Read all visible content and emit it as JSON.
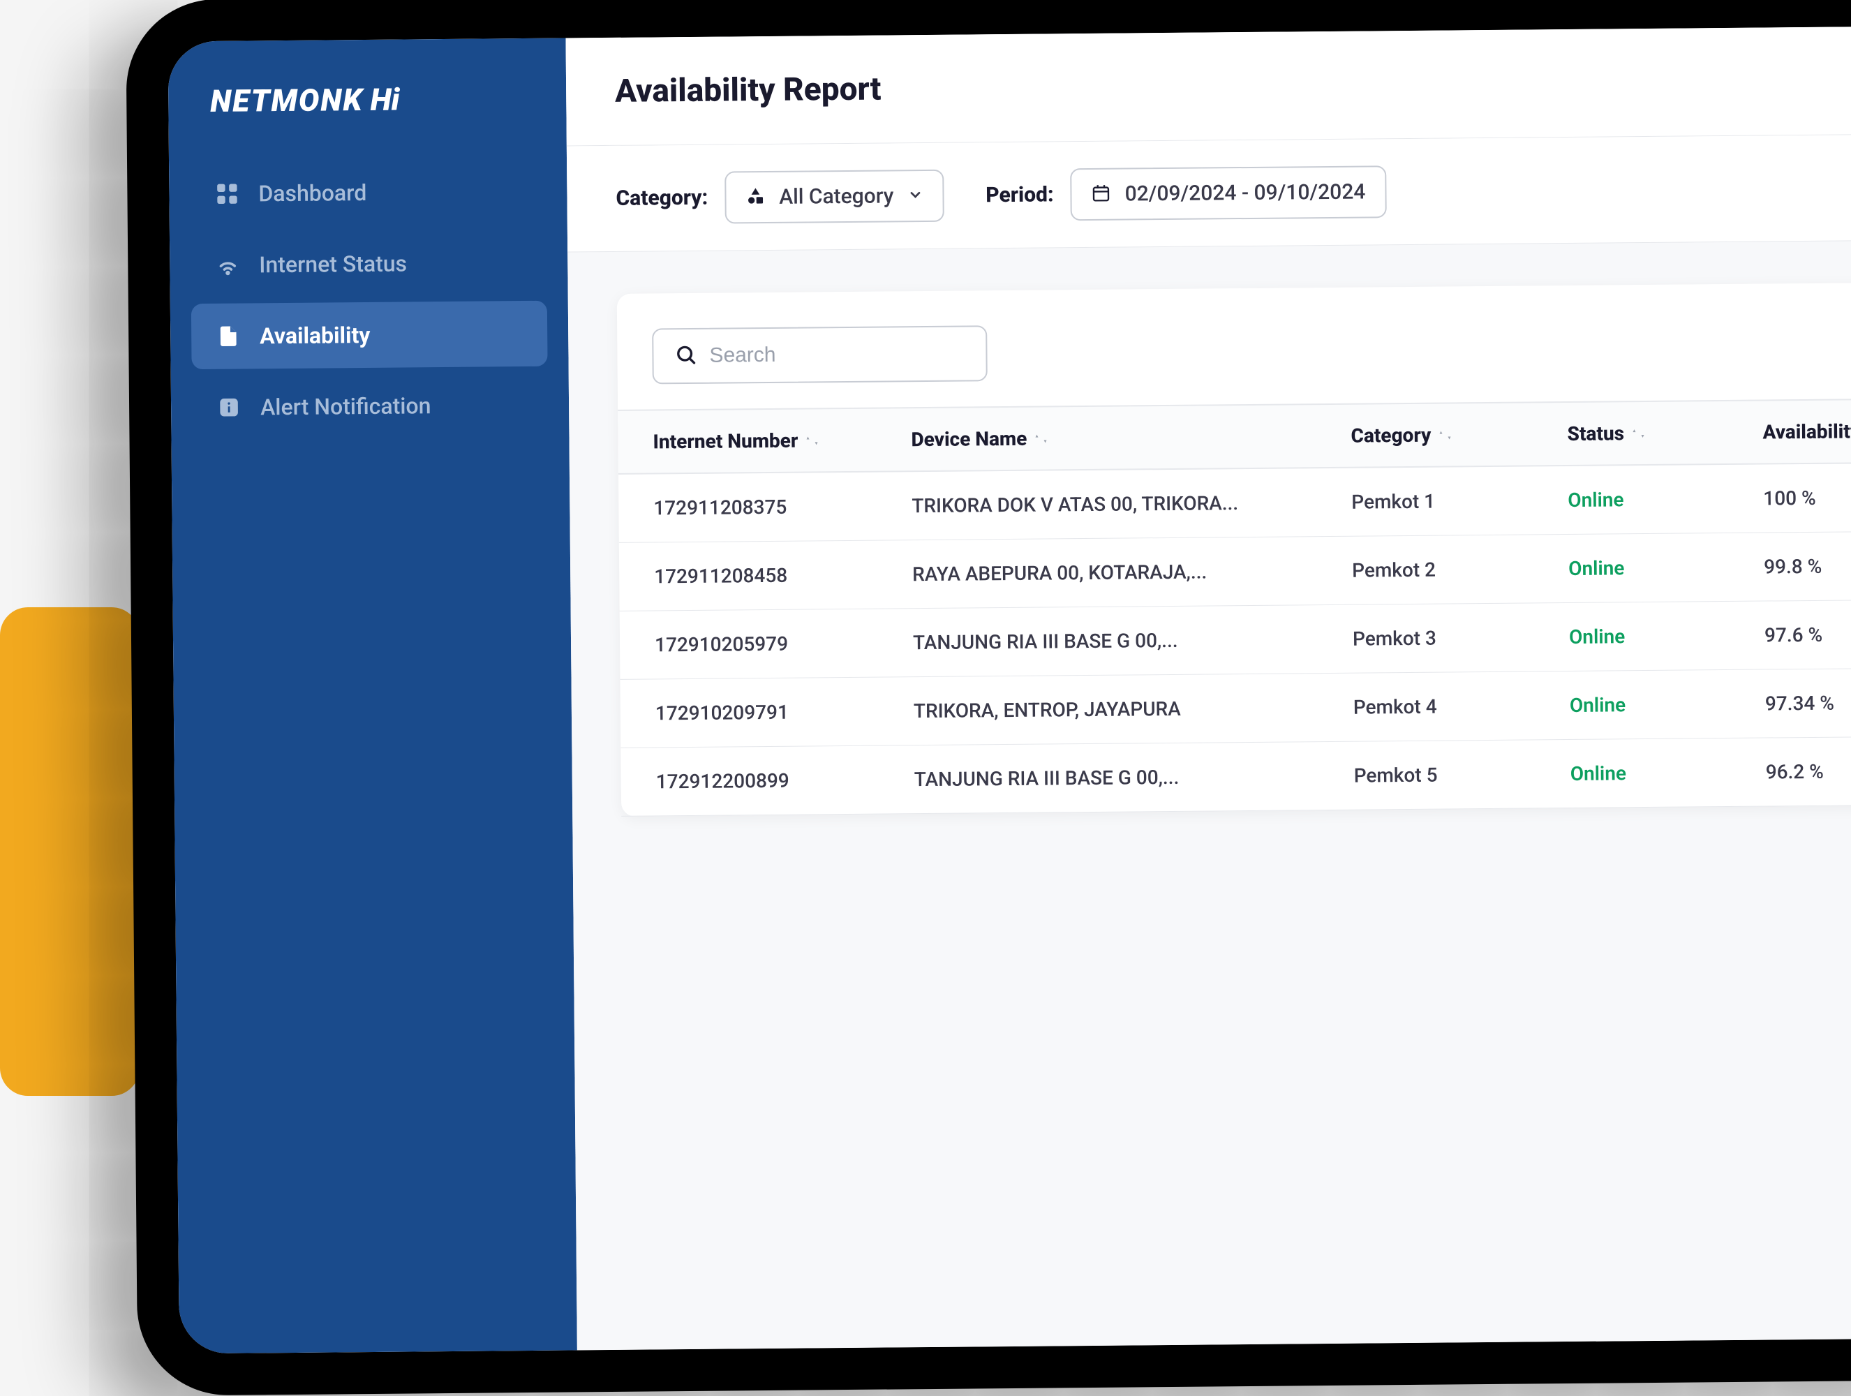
{
  "brand": {
    "name": "NETMONK",
    "sub": "Hi"
  },
  "sidebar": {
    "items": [
      {
        "label": "Dashboard",
        "icon": "grid"
      },
      {
        "label": "Internet Status",
        "icon": "wifi"
      },
      {
        "label": "Availability",
        "icon": "file"
      },
      {
        "label": "Alert Notification",
        "icon": "info"
      }
    ],
    "activeIndex": 2
  },
  "page": {
    "title": "Availability Report"
  },
  "filters": {
    "category_label": "Category:",
    "category_value": "All Category",
    "period_label": "Period:",
    "period_value": "02/09/2024 - 09/10/2024"
  },
  "search": {
    "placeholder": "Search"
  },
  "table": {
    "columns": [
      {
        "label": "Internet Number",
        "sortable": true
      },
      {
        "label": "Device Name",
        "sortable": true
      },
      {
        "label": "Category",
        "sortable": true
      },
      {
        "label": "Status",
        "sortable": true
      },
      {
        "label": "Availability Work Hour",
        "sortable": false
      }
    ],
    "rows": [
      {
        "num": "172911208375",
        "name": "TRIKORA DOK V ATAS 00, TRIKORA...",
        "cat": "Pemkot 1",
        "status": "Online",
        "avail": "100 %"
      },
      {
        "num": "172911208458",
        "name": "RAYA ABEPURA 00, KOTARAJA,...",
        "cat": "Pemkot 2",
        "status": "Online",
        "avail": "99.8 %"
      },
      {
        "num": "172910205979",
        "name": "TANJUNG RIA III BASE G 00,...",
        "cat": "Pemkot 3",
        "status": "Online",
        "avail": "97.6 %"
      },
      {
        "num": "172910209791",
        "name": "TRIKORA, ENTROP, JAYAPURA",
        "cat": "Pemkot 4",
        "status": "Online",
        "avail": "97.34 %"
      },
      {
        "num": "172912200899",
        "name": "TANJUNG RIA III BASE G 00,...",
        "cat": "Pemkot 5",
        "status": "Online",
        "avail": "96.2 %"
      }
    ]
  },
  "colors": {
    "sidebar_bg": "#1a4b8c",
    "sidebar_active": "#3a6aac",
    "text_muted": "#a8bdd9",
    "status_online": "#0d9f5f",
    "yellow": "#f2a91f",
    "border": "#e6e8ec"
  }
}
